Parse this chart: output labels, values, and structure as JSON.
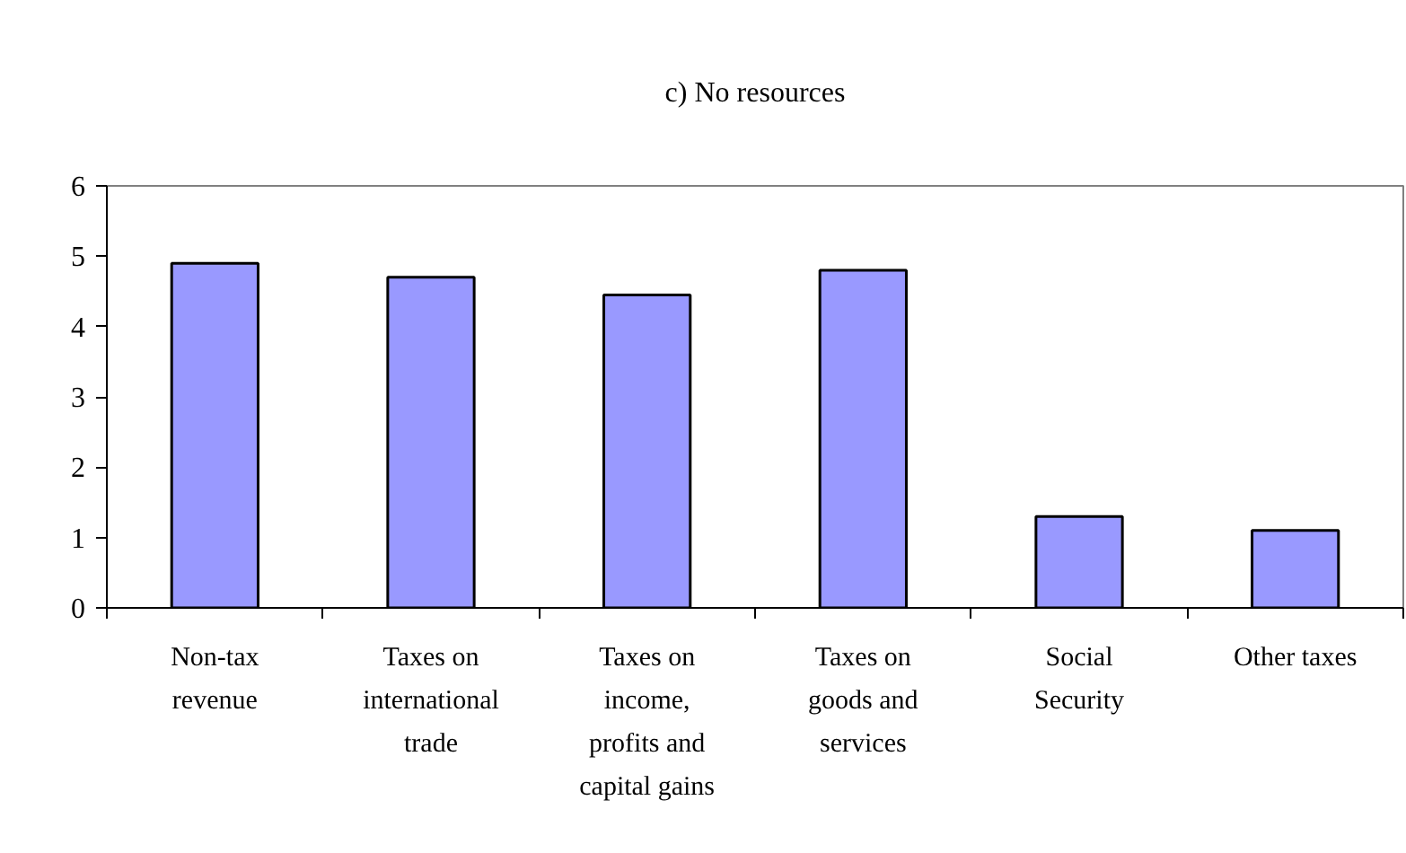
{
  "chart_data": {
    "type": "bar",
    "title": "c) No resources",
    "categories": [
      "Non-tax revenue",
      "Taxes on international trade",
      "Taxes on income, profits and capital gains",
      "Taxes on goods and services",
      "Social Security",
      "Other taxes"
    ],
    "values": [
      4.9,
      4.7,
      4.45,
      4.8,
      1.3,
      1.1
    ],
    "color": "#9999ff",
    "ylim": [
      0,
      6
    ],
    "yticks": [
      0,
      1,
      2,
      3,
      4,
      5,
      6
    ]
  }
}
